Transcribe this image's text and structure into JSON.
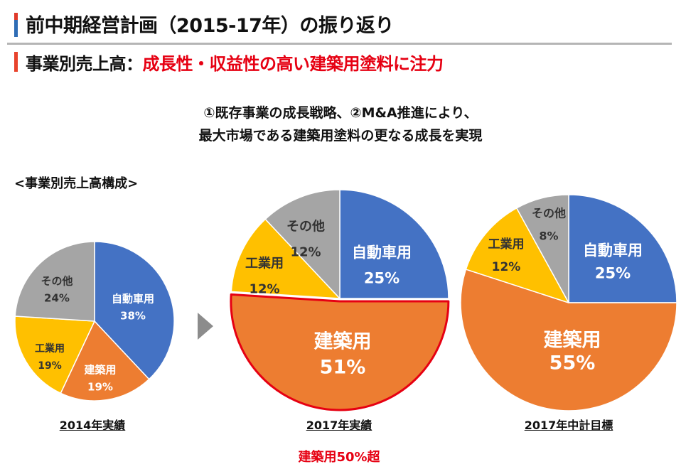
{
  "header": {
    "title": "前中期経営計画（2015-17年）の振り返り",
    "subtitle_prefix": "事業別売上高：",
    "subtitle_highlight": "成長性・収益性の高い建築用塗料に注力"
  },
  "lead": {
    "line1": "①既存事業の成長戦略、②M&A推進により、",
    "line2": "最大市場である建築用塗料の更なる成長を実現"
  },
  "section_label": "<事業別売上高構成>",
  "note": "建築用50%超",
  "colors": {
    "automotive": "#4472C4",
    "architectural": "#ED7D31",
    "industrial": "#FFC000",
    "other": "#A5A5A5",
    "highlight": "#E60012",
    "arrow": "#8C8C8C"
  },
  "chart_data": [
    {
      "type": "pie",
      "title": "2014年実績",
      "categories": [
        "自動車用",
        "建築用",
        "工業用",
        "その他"
      ],
      "values": [
        38,
        19,
        19,
        24
      ],
      "labels": [
        "38%",
        "19%",
        "19%",
        "24%"
      ]
    },
    {
      "type": "pie",
      "title": "2017年実績",
      "categories": [
        "自動車用",
        "建築用",
        "工業用",
        "その他"
      ],
      "values": [
        25,
        51,
        12,
        12
      ],
      "labels": [
        "25%",
        "51%",
        "12%",
        "12%"
      ],
      "highlighted": "建築用"
    },
    {
      "type": "pie",
      "title": "2017年中計目標",
      "categories": [
        "自動車用",
        "建築用",
        "工業用",
        "その他"
      ],
      "values": [
        25,
        55,
        12,
        8
      ],
      "labels": [
        "25%",
        "55%",
        "12%",
        "8%"
      ]
    }
  ]
}
